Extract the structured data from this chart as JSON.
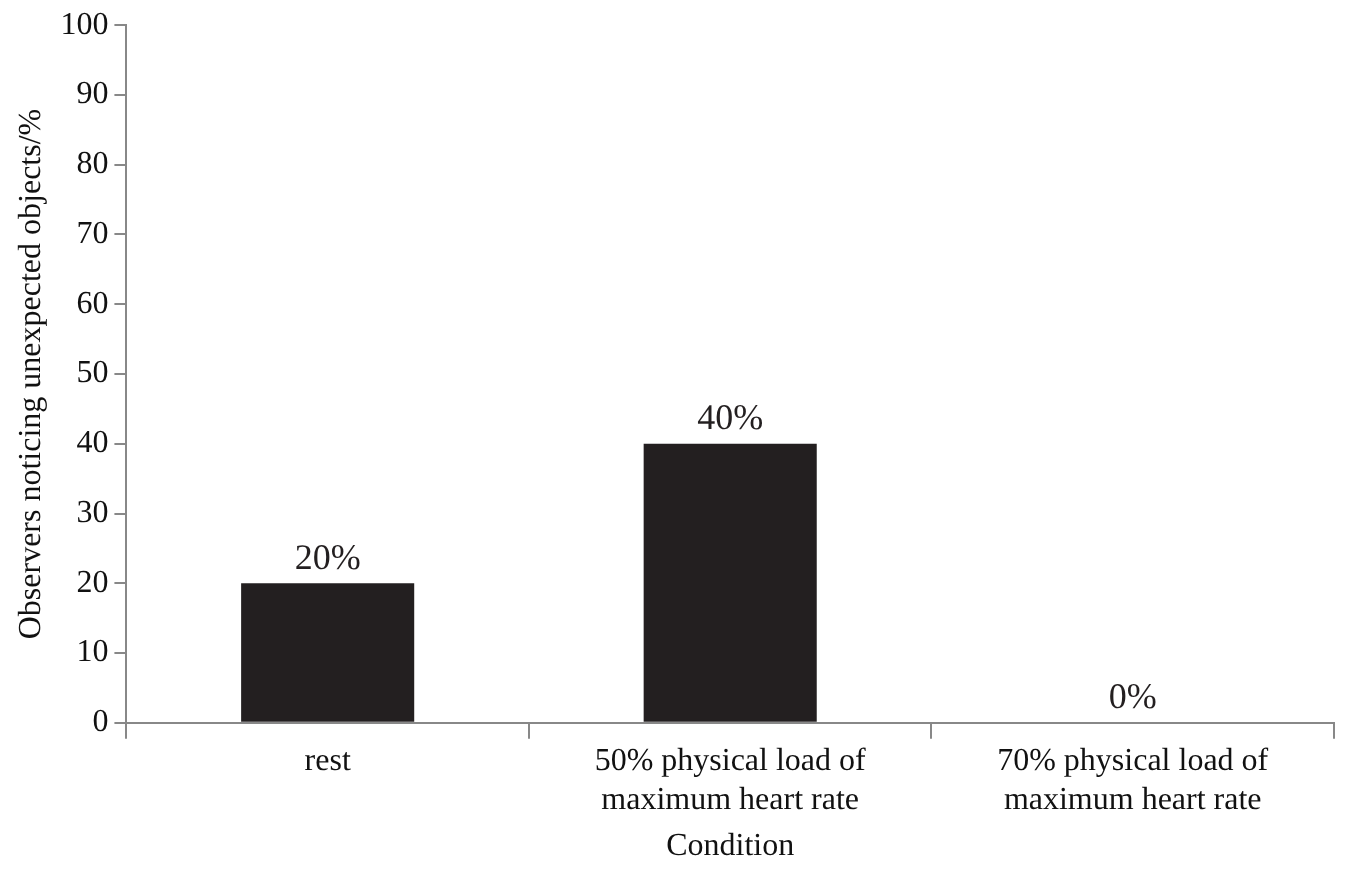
{
  "chart_data": {
    "type": "bar",
    "xlabel": "Condition",
    "ylabel": "Observers noticing unexpected objects/%",
    "categories": [
      "rest",
      "50% physical load of maximum heart rate",
      "70% physical load of maximum heart rate"
    ],
    "values": [
      20,
      40,
      0
    ],
    "value_labels": [
      "20%",
      "40%",
      "0%"
    ],
    "color": "#231f20",
    "ylim": [
      0,
      100
    ],
    "yticks": [
      0,
      10,
      20,
      30,
      40,
      50,
      60,
      70,
      80,
      90,
      100
    ],
    "grid": false,
    "legend": false
  }
}
